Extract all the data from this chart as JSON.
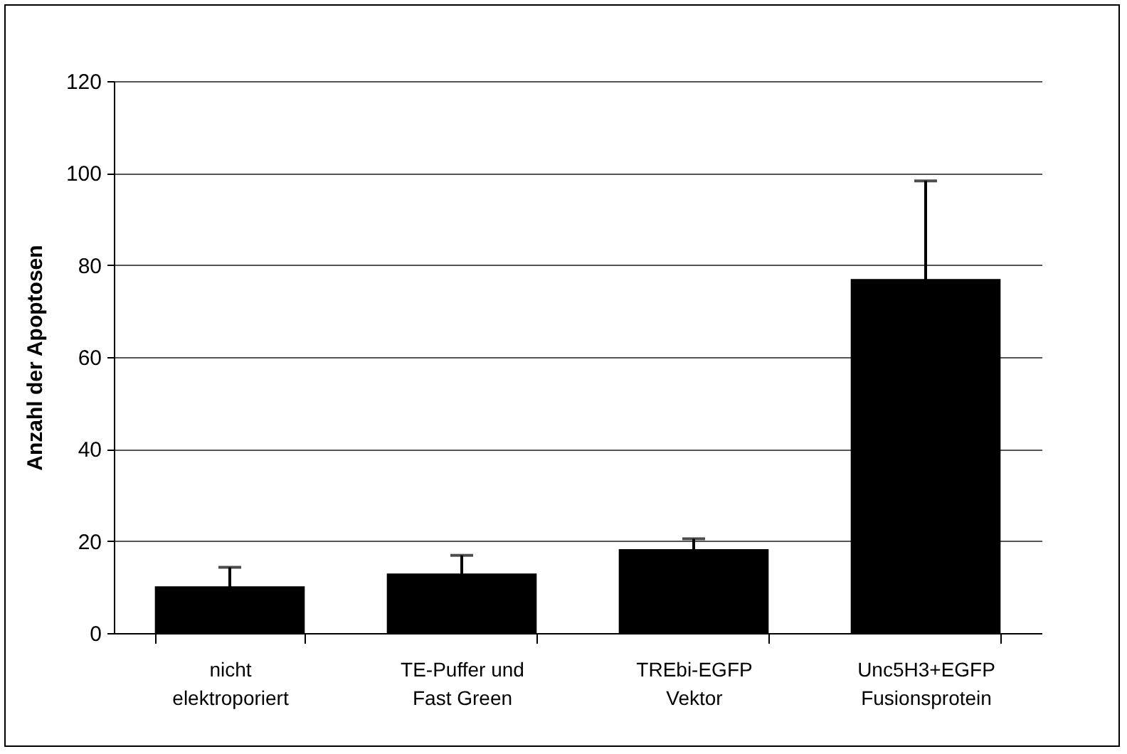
{
  "chart_data": {
    "type": "bar",
    "ylabel": "Anzahl der Apoptosen",
    "categories": [
      "nicht elektroporiert",
      "TE-Puffer und Fast Green",
      "TREbi-EGFP Vektor",
      "Unc5H3+EGFP Fusionsprotein"
    ],
    "values": [
      10,
      12.8,
      18.1,
      76.8
    ],
    "errors": [
      4.3,
      4.1,
      2.4,
      21.5
    ],
    "color": "#000000",
    "ylim": [
      0,
      120
    ],
    "yticks": [
      0,
      20,
      40,
      60,
      80,
      100,
      120
    ],
    "grid": "y"
  }
}
